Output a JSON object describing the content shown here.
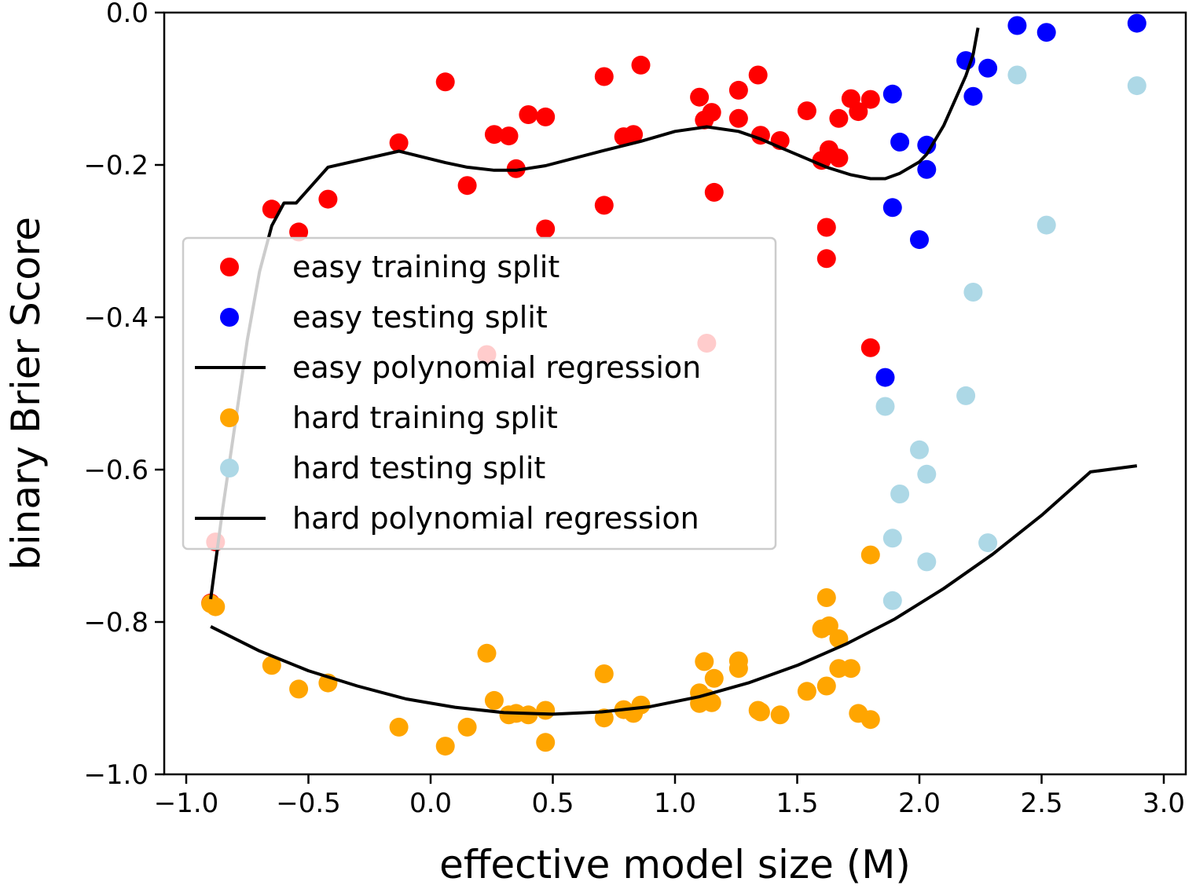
{
  "chart_data": {
    "type": "scatter",
    "title": "",
    "xlabel": "effective model size (M)",
    "ylabel": "binary Brier Score",
    "xlim": [
      -1.09,
      3.09
    ],
    "ylim": [
      -1.0,
      0.0
    ],
    "x_ticks": [
      -1.0,
      -0.5,
      0.0,
      0.5,
      1.0,
      1.5,
      2.0,
      2.5,
      3.0
    ],
    "y_ticks": [
      0.0,
      -0.2,
      -0.4,
      -0.6,
      -0.8,
      -1.0
    ],
    "x_tick_labels": [
      "−1.0",
      "−0.5",
      "0.0",
      "0.5",
      "1.0",
      "1.5",
      "2.0",
      "2.5",
      "3.0"
    ],
    "y_tick_labels": [
      "0.0",
      "−0.2",
      "−0.4",
      "−0.6",
      "−0.8",
      "−1.0"
    ],
    "grid": false,
    "legend_position": "center-left",
    "series": [
      {
        "name": "easy training split",
        "kind": "scatter",
        "color": "#ff0000",
        "x": [
          -0.9,
          -0.88,
          -0.65,
          -0.54,
          -0.42,
          -0.13,
          0.06,
          0.15,
          0.23,
          0.26,
          0.32,
          0.35,
          0.4,
          0.47,
          0.47,
          0.71,
          0.71,
          0.79,
          0.83,
          0.86,
          1.1,
          1.12,
          1.13,
          1.15,
          1.16,
          1.26,
          1.26,
          1.34,
          1.35,
          1.43,
          1.54,
          1.6,
          1.62,
          1.62,
          1.63,
          1.67,
          1.67,
          1.72,
          1.75,
          1.8,
          1.8
        ],
        "y": [
          -0.775,
          -0.695,
          -0.258,
          -0.288,
          -0.245,
          -0.171,
          -0.091,
          -0.227,
          -0.449,
          -0.16,
          -0.162,
          -0.205,
          -0.134,
          -0.137,
          -0.284,
          -0.084,
          -0.253,
          -0.163,
          -0.16,
          -0.069,
          -0.111,
          -0.141,
          -0.434,
          -0.131,
          -0.236,
          -0.102,
          -0.139,
          -0.082,
          -0.161,
          -0.168,
          -0.129,
          -0.194,
          -0.282,
          -0.323,
          -0.18,
          -0.139,
          -0.191,
          -0.113,
          -0.13,
          -0.114,
          -0.44
        ]
      },
      {
        "name": "easy testing split",
        "kind": "scatter",
        "color": "#0000ff",
        "x": [
          1.86,
          1.89,
          1.89,
          1.92,
          2.0,
          2.03,
          2.03,
          2.19,
          2.22,
          2.28,
          2.4,
          2.52,
          2.89
        ],
        "y": [
          -0.479,
          -0.107,
          -0.256,
          -0.17,
          -0.298,
          -0.174,
          -0.206,
          -0.063,
          -0.11,
          -0.073,
          -0.017,
          -0.026,
          -0.014
        ]
      },
      {
        "name": "easy polynomial regression",
        "kind": "line",
        "color": "#000000",
        "x": [
          -0.9,
          -0.85,
          -0.8,
          -0.75,
          -0.7,
          -0.65,
          -0.6,
          -0.55,
          -0.42,
          -0.13,
          0.06,
          0.15,
          0.26,
          0.35,
          0.47,
          0.71,
          0.86,
          1.0,
          1.13,
          1.26,
          1.35,
          1.43,
          1.54,
          1.62,
          1.72,
          1.8,
          1.86,
          1.92,
          2.0,
          2.03,
          2.1,
          2.19,
          2.22,
          2.24
        ],
        "y": [
          -0.77,
          -0.65,
          -0.54,
          -0.43,
          -0.34,
          -0.28,
          -0.25,
          -0.25,
          -0.203,
          -0.182,
          -0.197,
          -0.203,
          -0.207,
          -0.207,
          -0.201,
          -0.181,
          -0.169,
          -0.156,
          -0.15,
          -0.156,
          -0.166,
          -0.177,
          -0.192,
          -0.203,
          -0.213,
          -0.218,
          -0.218,
          -0.211,
          -0.196,
          -0.186,
          -0.148,
          -0.083,
          -0.055,
          -0.02
        ]
      },
      {
        "name": "hard training split",
        "kind": "scatter",
        "color": "#ffa500",
        "x": [
          -0.9,
          -0.88,
          -0.65,
          -0.54,
          -0.42,
          -0.13,
          0.06,
          0.15,
          0.23,
          0.26,
          0.32,
          0.35,
          0.4,
          0.47,
          0.47,
          0.71,
          0.71,
          0.79,
          0.83,
          0.86,
          1.1,
          1.1,
          1.12,
          1.13,
          1.15,
          1.16,
          1.26,
          1.26,
          1.34,
          1.35,
          1.43,
          1.54,
          1.6,
          1.62,
          1.62,
          1.63,
          1.67,
          1.67,
          1.72,
          1.75,
          1.8,
          1.8
        ],
        "y": [
          -0.776,
          -0.78,
          -0.857,
          -0.888,
          -0.88,
          -0.938,
          -0.963,
          -0.938,
          -0.841,
          -0.903,
          -0.922,
          -0.92,
          -0.922,
          -0.916,
          -0.958,
          -0.868,
          -0.926,
          -0.915,
          -0.92,
          -0.909,
          -0.893,
          -0.907,
          -0.852,
          -0.9,
          -0.906,
          -0.874,
          -0.851,
          -0.861,
          -0.916,
          -0.918,
          -0.922,
          -0.891,
          -0.809,
          -0.768,
          -0.884,
          -0.805,
          -0.822,
          -0.861,
          -0.861,
          -0.92,
          -0.712,
          -0.928
        ]
      },
      {
        "name": "hard testing split",
        "kind": "scatter",
        "color": "#add8e6",
        "x": [
          1.86,
          1.89,
          1.89,
          1.92,
          2.0,
          2.03,
          2.03,
          2.19,
          2.22,
          2.28,
          2.4,
          2.52,
          2.89
        ],
        "y": [
          -0.517,
          -0.69,
          -0.772,
          -0.632,
          -0.574,
          -0.606,
          -0.721,
          -0.503,
          -0.367,
          -0.696,
          -0.082,
          -0.279,
          -0.096
        ]
      },
      {
        "name": "hard polynomial regression",
        "kind": "line",
        "color": "#000000",
        "x": [
          -0.9,
          -0.7,
          -0.5,
          -0.3,
          -0.1,
          0.1,
          0.3,
          0.5,
          0.7,
          0.9,
          1.1,
          1.3,
          1.5,
          1.7,
          1.9,
          2.1,
          2.3,
          2.5,
          2.7,
          2.89
        ],
        "y": [
          -0.806,
          -0.838,
          -0.864,
          -0.884,
          -0.901,
          -0.912,
          -0.919,
          -0.921,
          -0.918,
          -0.911,
          -0.898,
          -0.88,
          -0.857,
          -0.829,
          -0.796,
          -0.756,
          -0.711,
          -0.66,
          -0.603,
          -0.595
        ]
      }
    ]
  }
}
